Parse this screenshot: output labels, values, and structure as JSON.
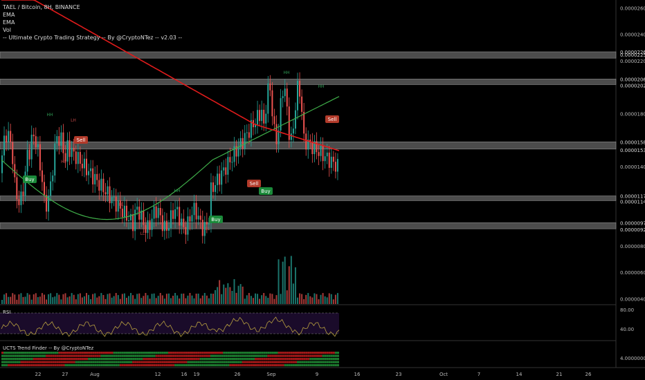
{
  "legend": {
    "symbol": "TAEL / Bitcoin, 8H, BINANCE",
    "indicators": [
      "EMA",
      "EMA",
      "Vol",
      "-- Ultimate Crypto Trading Strategy -- By @CryptoNTez -- v2.03 --"
    ]
  },
  "colors": {
    "background": "#000000",
    "up": "#26a69a",
    "down": "#ef5350",
    "ema_fast": "#3fae49",
    "ema_slow": "#e01b1b",
    "zone": "#6e6e6e",
    "rsi": "#b8a040",
    "rsi_band": "#1a0b2a",
    "buy": "#1b8a3a",
    "sell": "#b23a2a"
  },
  "chart_data": {
    "type": "candlestick",
    "price_axis": {
      "ticks": [
        "0.00002600",
        "0.00002400",
        "0.00002200",
        "0.00001800",
        "0.00001400",
        "0.00000800",
        "0.00000600",
        "0.00000400"
      ],
      "range": [
        3.6e-06,
        2.66e-05
      ]
    },
    "zone_labels": [
      {
        "label": "0.00002268",
        "low": 2.22e-05,
        "high": 2.268e-05
      },
      {
        "label": "0.00002062",
        "low": 2.02e-05,
        "high": 2.062e-05
      },
      {
        "label": "0.00001587",
        "low": 1.532e-05,
        "high": 1.587e-05
      },
      {
        "label": "0.00001178",
        "low": 1.142e-05,
        "high": 1.178e-05
      },
      {
        "label": "0.00000975",
        "low": 9.29e-06,
        "high": 9.75e-06
      }
    ],
    "extra_price_labels": [
      "0.00002251",
      "0.00002020",
      "0.00001532",
      "0.00001142",
      "0.00000929"
    ],
    "x_axis": {
      "ticks": [
        "22",
        "27",
        "Aug",
        "12",
        "16",
        "19",
        "26",
        "Sep",
        "9",
        "16",
        "23",
        "Oct",
        "7",
        "14",
        "21",
        "26"
      ]
    },
    "signals": [
      {
        "type": "Buy",
        "label": "Buy"
      },
      {
        "type": "Sell",
        "label": "Sell"
      },
      {
        "type": "Buy",
        "label": "Buy"
      },
      {
        "type": "Sell",
        "label": "Sell"
      },
      {
        "type": "Buy",
        "label": "Buy"
      },
      {
        "type": "Sell",
        "label": "Sell"
      }
    ],
    "pivot_labels": [
      "HH",
      "LH",
      "HL",
      "LL"
    ],
    "rsi": {
      "title": "RSI",
      "ticks": [
        "80.00",
        "40.00"
      ],
      "upper": 70,
      "lower": 30
    },
    "trend_finder": {
      "title": "UCTS Trend Finder -- By @CryptoNTez",
      "ticks": [
        "4.00000000"
      ]
    }
  }
}
